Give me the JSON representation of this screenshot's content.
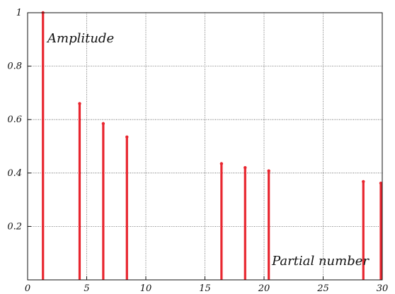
{
  "chart_data": {
    "type": "bar",
    "title": "",
    "xlabel": "Partial number",
    "ylabel": "Amplitude",
    "xlim": [
      0,
      30
    ],
    "ylim": [
      0,
      1
    ],
    "grid": true,
    "colors": {
      "stem": "#e8262f",
      "grid": "#555555",
      "axis": "#111111"
    },
    "x": [
      1.3,
      4.4,
      6.4,
      8.4,
      16.4,
      18.4,
      20.4,
      28.4,
      30.4
    ],
    "values": [
      1.0,
      0.66,
      0.585,
      0.535,
      0.435,
      0.42,
      0.408,
      0.368,
      0.362
    ],
    "x_ticks": [
      0,
      5,
      10,
      15,
      20,
      25,
      30
    ],
    "x_tick_labels": [
      "0",
      "5",
      "10",
      "15",
      "20",
      "25",
      "30"
    ],
    "y_ticks": [
      0.2,
      0.4,
      0.6,
      0.8,
      1
    ],
    "y_tick_labels": [
      "0.2",
      "0.4",
      "0.6",
      "0.8",
      "1"
    ]
  }
}
